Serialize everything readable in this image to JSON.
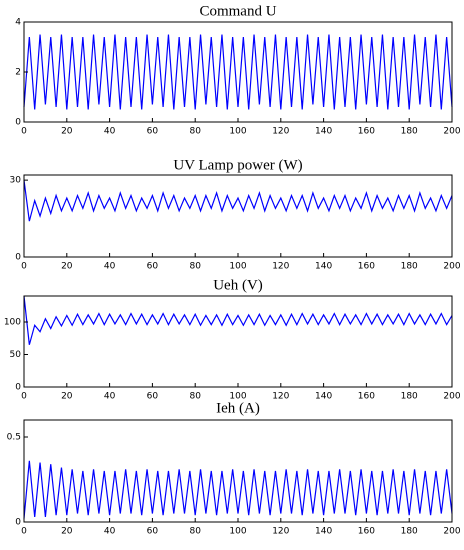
{
  "chart_data": [
    {
      "type": "line",
      "title": "Command U",
      "color": "#0000ff",
      "x": [
        0,
        2.5,
        5,
        7.5,
        10,
        12.5,
        15,
        17.5,
        20,
        22.5,
        25,
        27.5,
        30,
        32.5,
        35,
        37.5,
        40,
        42.5,
        45,
        47.5,
        50,
        52.5,
        55,
        57.5,
        60,
        62.5,
        65,
        67.5,
        70,
        72.5,
        75,
        77.5,
        80,
        82.5,
        85,
        87.5,
        90,
        92.5,
        95,
        97.5,
        100,
        102.5,
        105,
        107.5,
        110,
        112.5,
        115,
        117.5,
        120,
        122.5,
        125,
        127.5,
        130,
        132.5,
        135,
        137.5,
        140,
        142.5,
        145,
        147.5,
        150,
        152.5,
        155,
        157.5,
        160,
        162.5,
        165,
        167.5,
        170,
        172.5,
        175,
        177.5,
        180,
        182.5,
        185,
        187.5,
        190,
        192.5,
        195,
        197.5,
        200
      ],
      "values": [
        0.6,
        3.4,
        0.5,
        3.5,
        0.7,
        3.4,
        0.6,
        3.5,
        0.5,
        3.4,
        0.6,
        3.4,
        0.5,
        3.5,
        0.7,
        3.4,
        0.6,
        3.5,
        0.5,
        3.4,
        0.6,
        3.4,
        0.5,
        3.5,
        0.7,
        3.4,
        0.6,
        3.5,
        0.5,
        3.4,
        0.6,
        3.4,
        0.5,
        3.5,
        0.7,
        3.4,
        0.6,
        3.5,
        0.5,
        3.4,
        0.6,
        3.4,
        0.5,
        3.5,
        0.7,
        3.4,
        0.6,
        3.5,
        0.5,
        3.4,
        0.6,
        3.4,
        0.5,
        3.5,
        0.7,
        3.4,
        0.6,
        3.5,
        0.5,
        3.4,
        0.6,
        3.4,
        0.5,
        3.5,
        0.7,
        3.4,
        0.6,
        3.5,
        0.5,
        3.4,
        0.6,
        3.4,
        0.5,
        3.5,
        0.7,
        3.4,
        0.6,
        3.5,
        0.5,
        3.4,
        0.6
      ],
      "xlim": [
        0,
        200
      ],
      "xticks": [
        0,
        20,
        40,
        60,
        80,
        100,
        120,
        140,
        160,
        180,
        200
      ],
      "ylim": [
        0,
        4
      ],
      "yticks": [
        0,
        2,
        4
      ]
    },
    {
      "type": "line",
      "title": "UV Lamp power (W)",
      "color": "#0000ff",
      "x": [
        0,
        2.5,
        5,
        7.5,
        10,
        12.5,
        15,
        17.5,
        20,
        22.5,
        25,
        27.5,
        30,
        32.5,
        35,
        37.5,
        40,
        42.5,
        45,
        47.5,
        50,
        52.5,
        55,
        57.5,
        60,
        62.5,
        65,
        67.5,
        70,
        72.5,
        75,
        77.5,
        80,
        82.5,
        85,
        87.5,
        90,
        92.5,
        95,
        97.5,
        100,
        102.5,
        105,
        107.5,
        110,
        112.5,
        115,
        117.5,
        120,
        122.5,
        125,
        127.5,
        130,
        132.5,
        135,
        137.5,
        140,
        142.5,
        145,
        147.5,
        150,
        152.5,
        155,
        157.5,
        160,
        162.5,
        165,
        167.5,
        170,
        172.5,
        175,
        177.5,
        180,
        182.5,
        185,
        187.5,
        190,
        192.5,
        195,
        197.5,
        200
      ],
      "values": [
        30,
        14,
        22,
        16,
        23,
        17,
        24,
        18,
        23,
        18,
        24,
        19,
        25,
        18,
        24,
        19,
        23,
        18,
        25,
        19,
        24,
        18,
        23,
        19,
        24,
        18,
        25,
        19,
        24,
        18,
        23,
        19,
        24,
        18,
        24,
        19,
        25,
        18,
        24,
        19,
        23,
        18,
        24,
        19,
        25,
        18,
        24,
        19,
        23,
        18,
        24,
        19,
        24,
        18,
        25,
        19,
        23,
        18,
        24,
        19,
        24,
        18,
        23,
        19,
        25,
        18,
        24,
        19,
        23,
        18,
        24,
        19,
        24,
        18,
        25,
        19,
        23,
        18,
        24,
        19,
        24
      ],
      "xlim": [
        0,
        200
      ],
      "xticks": [
        0,
        20,
        40,
        60,
        80,
        100,
        120,
        140,
        160,
        180,
        200
      ],
      "ylim": [
        0,
        32
      ],
      "yticks": [
        0,
        30
      ]
    },
    {
      "type": "line",
      "title": "Ueh (V)",
      "color": "#0000ff",
      "x": [
        0,
        2.5,
        5,
        7.5,
        10,
        12.5,
        15,
        17.5,
        20,
        22.5,
        25,
        27.5,
        30,
        32.5,
        35,
        37.5,
        40,
        42.5,
        45,
        47.5,
        50,
        52.5,
        55,
        57.5,
        60,
        62.5,
        65,
        67.5,
        70,
        72.5,
        75,
        77.5,
        80,
        82.5,
        85,
        87.5,
        90,
        92.5,
        95,
        97.5,
        100,
        102.5,
        105,
        107.5,
        110,
        112.5,
        115,
        117.5,
        120,
        122.5,
        125,
        127.5,
        130,
        132.5,
        135,
        137.5,
        140,
        142.5,
        145,
        147.5,
        150,
        152.5,
        155,
        157.5,
        160,
        162.5,
        165,
        167.5,
        170,
        172.5,
        175,
        177.5,
        180,
        182.5,
        185,
        187.5,
        190,
        192.5,
        195,
        197.5,
        200
      ],
      "values": [
        140,
        65,
        95,
        85,
        105,
        90,
        108,
        94,
        110,
        95,
        112,
        96,
        111,
        97,
        113,
        96,
        112,
        97,
        111,
        96,
        113,
        97,
        112,
        96,
        111,
        97,
        113,
        96,
        112,
        97,
        111,
        96,
        112,
        95,
        110,
        96,
        111,
        95,
        112,
        96,
        110,
        95,
        111,
        96,
        112,
        95,
        110,
        96,
        111,
        95,
        112,
        96,
        113,
        97,
        112,
        96,
        111,
        97,
        113,
        96,
        112,
        97,
        111,
        96,
        113,
        97,
        112,
        96,
        111,
        97,
        112,
        96,
        113,
        97,
        111,
        96,
        112,
        97,
        113,
        96,
        110
      ],
      "xlim": [
        0,
        200
      ],
      "xticks": [
        0,
        20,
        40,
        60,
        80,
        100,
        120,
        140,
        160,
        180,
        200
      ],
      "ylim": [
        0,
        140
      ],
      "yticks": [
        0,
        50,
        100
      ]
    },
    {
      "type": "line",
      "title": "Ieh (A)",
      "color": "#0000ff",
      "x": [
        0,
        2.5,
        5,
        7.5,
        10,
        12.5,
        15,
        17.5,
        20,
        22.5,
        25,
        27.5,
        30,
        32.5,
        35,
        37.5,
        40,
        42.5,
        45,
        47.5,
        50,
        52.5,
        55,
        57.5,
        60,
        62.5,
        65,
        67.5,
        70,
        72.5,
        75,
        77.5,
        80,
        82.5,
        85,
        87.5,
        90,
        92.5,
        95,
        97.5,
        100,
        102.5,
        105,
        107.5,
        110,
        112.5,
        115,
        117.5,
        120,
        122.5,
        125,
        127.5,
        130,
        132.5,
        135,
        137.5,
        140,
        142.5,
        145,
        147.5,
        150,
        152.5,
        155,
        157.5,
        160,
        162.5,
        165,
        167.5,
        170,
        172.5,
        175,
        177.5,
        180,
        182.5,
        185,
        187.5,
        190,
        192.5,
        195,
        197.5,
        200
      ],
      "values": [
        0.02,
        0.36,
        0.03,
        0.35,
        0.03,
        0.34,
        0.04,
        0.32,
        0.04,
        0.31,
        0.05,
        0.3,
        0.04,
        0.31,
        0.05,
        0.3,
        0.04,
        0.3,
        0.05,
        0.31,
        0.05,
        0.3,
        0.04,
        0.31,
        0.05,
        0.3,
        0.04,
        0.3,
        0.05,
        0.31,
        0.05,
        0.3,
        0.04,
        0.31,
        0.05,
        0.3,
        0.04,
        0.3,
        0.05,
        0.31,
        0.05,
        0.3,
        0.04,
        0.31,
        0.05,
        0.3,
        0.04,
        0.3,
        0.05,
        0.31,
        0.05,
        0.3,
        0.04,
        0.31,
        0.05,
        0.3,
        0.04,
        0.3,
        0.05,
        0.31,
        0.05,
        0.3,
        0.04,
        0.31,
        0.05,
        0.3,
        0.04,
        0.3,
        0.05,
        0.31,
        0.05,
        0.3,
        0.04,
        0.31,
        0.05,
        0.3,
        0.04,
        0.3,
        0.05,
        0.31,
        0.05
      ],
      "xlim": [
        0,
        200
      ],
      "xticks": [
        0,
        20,
        40,
        60,
        80,
        100,
        120,
        140,
        160,
        180,
        200
      ],
      "ylim": [
        0,
        0.6
      ],
      "yticks": [
        0,
        0.5
      ]
    }
  ]
}
